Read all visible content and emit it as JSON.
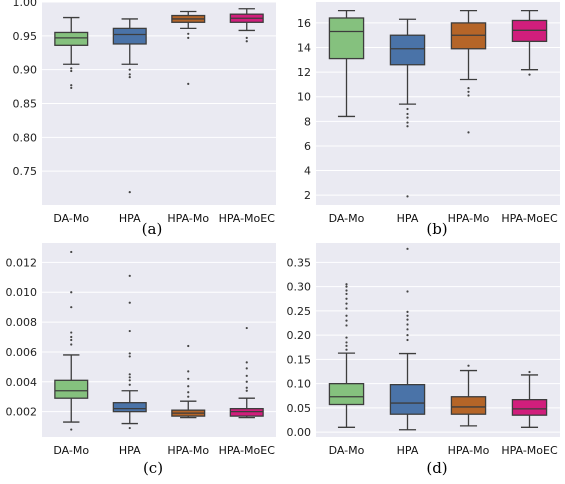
{
  "chart_data": [
    {
      "type": "box",
      "panel_label": "(a)",
      "categories": [
        "DA-Mo",
        "HPA",
        "HPA-Mo",
        "HPA-MoEC"
      ],
      "ylim": [
        0.7,
        1.0
      ],
      "yticks": [
        "0.75",
        "0.80",
        "0.85",
        "0.90",
        "0.95",
        "1.00"
      ],
      "grid": true,
      "series": [
        {
          "colour": "#85c17e",
          "q1": 0.936,
          "median": 0.947,
          "q3": 0.955,
          "whisker_low": 0.908,
          "whisker_high": 0.977,
          "outliers": [
            0.902,
            0.898,
            0.877,
            0.873
          ]
        },
        {
          "colour": "#4a73a8",
          "q1": 0.938,
          "median": 0.952,
          "q3": 0.961,
          "whisker_low": 0.908,
          "whisker_high": 0.975,
          "outliers": [
            0.9,
            0.893,
            0.889,
            0.719
          ]
        },
        {
          "colour": "#b56528",
          "q1": 0.97,
          "median": 0.975,
          "q3": 0.98,
          "whisker_low": 0.961,
          "whisker_high": 0.986,
          "outliers": [
            0.953,
            0.947,
            0.879
          ]
        },
        {
          "colour": "#d11e7c",
          "q1": 0.97,
          "median": 0.976,
          "q3": 0.982,
          "whisker_low": 0.958,
          "whisker_high": 0.99,
          "outliers": [
            0.947,
            0.942
          ]
        }
      ]
    },
    {
      "type": "box",
      "panel_label": "(b)",
      "categories": [
        "DA-Mo",
        "HPA",
        "HPA-Mo",
        "HPA-MoEC"
      ],
      "ylim": [
        1.2,
        17.7
      ],
      "yticks": [
        "2",
        "4",
        "6",
        "8",
        "10",
        "12",
        "14",
        "16"
      ],
      "grid": true,
      "series": [
        {
          "colour": "#85c17e",
          "q1": 13.1,
          "median": 15.3,
          "q3": 16.4,
          "whisker_low": 8.4,
          "whisker_high": 17.0,
          "outliers": []
        },
        {
          "colour": "#4a73a8",
          "q1": 12.6,
          "median": 13.9,
          "q3": 15.0,
          "whisker_low": 9.4,
          "whisker_high": 16.3,
          "outliers": [
            9.0,
            8.6,
            8.3,
            7.9,
            7.6,
            1.9
          ]
        },
        {
          "colour": "#b56528",
          "q1": 13.9,
          "median": 15.0,
          "q3": 16.0,
          "whisker_low": 11.4,
          "whisker_high": 17.0,
          "outliers": [
            10.7,
            10.4,
            10.1,
            7.1
          ]
        },
        {
          "colour": "#d11e7c",
          "q1": 14.5,
          "median": 15.4,
          "q3": 16.2,
          "whisker_low": 12.2,
          "whisker_high": 17.0,
          "outliers": [
            11.8
          ]
        }
      ]
    },
    {
      "type": "box",
      "panel_label": "(c)",
      "categories": [
        "DA-Mo",
        "HPA",
        "HPA-Mo",
        "HPA-MoEC"
      ],
      "ylim": [
        0.0003,
        0.0133
      ],
      "yticks": [
        "0.002",
        "0.004",
        "0.006",
        "0.008",
        "0.010",
        "0.012"
      ],
      "grid": true,
      "series": [
        {
          "colour": "#85c17e",
          "q1": 0.0029,
          "median": 0.0034,
          "q3": 0.0041,
          "whisker_low": 0.0013,
          "whisker_high": 0.0058,
          "outliers": [
            0.0127,
            0.01,
            0.009,
            0.0073,
            0.007,
            0.0068,
            0.0065,
            0.0008
          ]
        },
        {
          "colour": "#4a73a8",
          "q1": 0.002,
          "median": 0.0022,
          "q3": 0.0026,
          "whisker_low": 0.0012,
          "whisker_high": 0.0034,
          "outliers": [
            0.0111,
            0.0093,
            0.0074,
            0.0059,
            0.0057,
            0.0045,
            0.0043,
            0.0041,
            0.0038,
            0.0009
          ]
        },
        {
          "colour": "#b56528",
          "q1": 0.0017,
          "median": 0.0019,
          "q3": 0.0021,
          "whisker_low": 0.0016,
          "whisker_high": 0.0027,
          "outliers": [
            0.0064,
            0.0047,
            0.0042,
            0.0037,
            0.0033,
            0.003
          ]
        },
        {
          "colour": "#d11e7c",
          "q1": 0.0017,
          "median": 0.002,
          "q3": 0.0022,
          "whisker_low": 0.0016,
          "whisker_high": 0.0029,
          "outliers": [
            0.0076,
            0.0053,
            0.0049,
            0.0044,
            0.004,
            0.0036,
            0.0034
          ]
        }
      ]
    },
    {
      "type": "box",
      "panel_label": "(d)",
      "categories": [
        "DA-Mo",
        "HPA",
        "HPA-Mo",
        "HPA-MoEC"
      ],
      "ylim": [
        -0.01,
        0.39
      ],
      "yticks": [
        "0.00",
        "0.05",
        "0.10",
        "0.15",
        "0.20",
        "0.25",
        "0.30",
        "0.35"
      ],
      "grid": true,
      "series": [
        {
          "colour": "#85c17e",
          "q1": 0.057,
          "median": 0.073,
          "q3": 0.1,
          "whisker_low": 0.01,
          "whisker_high": 0.163,
          "outliers": [
            0.305,
            0.3,
            0.292,
            0.285,
            0.275,
            0.265,
            0.255,
            0.24,
            0.23,
            0.22,
            0.195,
            0.185,
            0.178,
            0.17
          ]
        },
        {
          "colour": "#4a73a8",
          "q1": 0.037,
          "median": 0.06,
          "q3": 0.098,
          "whisker_low": 0.005,
          "whisker_high": 0.162,
          "outliers": [
            0.378,
            0.29,
            0.248,
            0.24,
            0.232,
            0.222,
            0.212,
            0.2,
            0.19
          ]
        },
        {
          "colour": "#b56528",
          "q1": 0.037,
          "median": 0.052,
          "q3": 0.073,
          "whisker_low": 0.013,
          "whisker_high": 0.127,
          "outliers": [
            0.137
          ]
        },
        {
          "colour": "#d11e7c",
          "q1": 0.035,
          "median": 0.048,
          "q3": 0.067,
          "whisker_low": 0.01,
          "whisker_high": 0.118,
          "outliers": [
            0.124
          ]
        }
      ]
    }
  ]
}
